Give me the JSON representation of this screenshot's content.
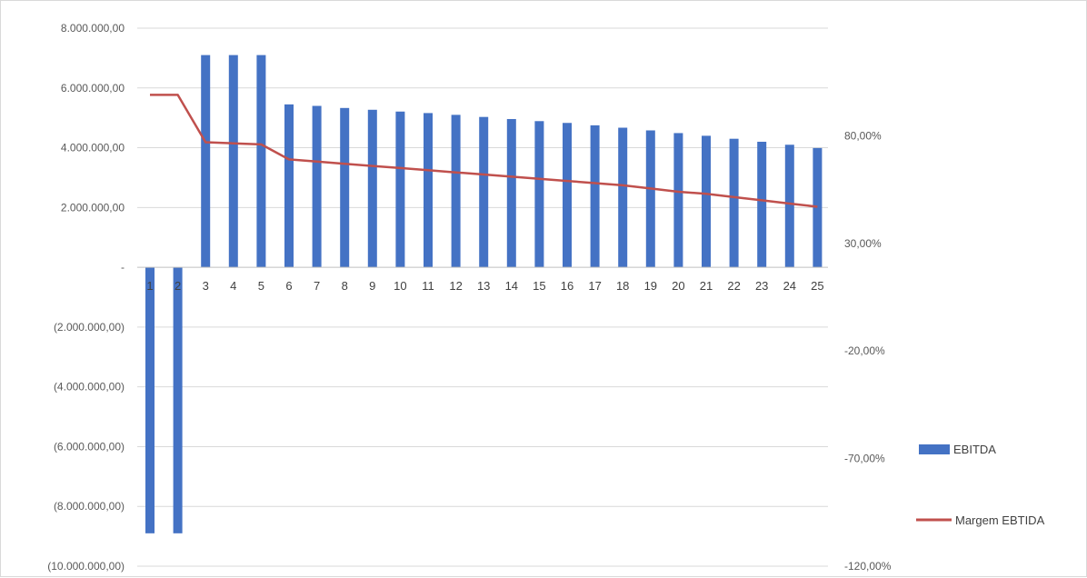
{
  "chart_data": {
    "type": "bar",
    "categories": [
      "1",
      "2",
      "3",
      "4",
      "5",
      "6",
      "7",
      "8",
      "9",
      "10",
      "11",
      "12",
      "13",
      "14",
      "15",
      "16",
      "17",
      "18",
      "19",
      "20",
      "21",
      "22",
      "23",
      "24",
      "25"
    ],
    "series": [
      {
        "name": "EBITDA",
        "type": "bar",
        "axis": "left",
        "color": "#4472C4",
        "values": [
          -8900000,
          -8900000,
          7100000,
          7100000,
          7100000,
          5450000,
          5400000,
          5330000,
          5270000,
          5210000,
          5160000,
          5100000,
          5030000,
          4960000,
          4890000,
          4830000,
          4750000,
          4670000,
          4580000,
          4490000,
          4400000,
          4300000,
          4200000,
          4100000,
          3990000
        ]
      },
      {
        "name": "Margem EBTIDA",
        "type": "line",
        "axis": "right",
        "color": "#C0504D",
        "values": [
          0.99,
          0.99,
          0.77,
          0.765,
          0.76,
          0.69,
          0.68,
          0.67,
          0.66,
          0.65,
          0.64,
          0.63,
          0.62,
          0.61,
          0.6,
          0.59,
          0.58,
          0.57,
          0.555,
          0.54,
          0.53,
          0.515,
          0.5,
          0.485,
          0.47
        ]
      }
    ],
    "y_left": {
      "ylim": [
        -10000000,
        8000000
      ],
      "ticks": [
        8000000,
        6000000,
        4000000,
        2000000,
        0,
        -2000000,
        -4000000,
        -6000000,
        -8000000,
        -10000000
      ],
      "tick_labels": [
        "8.000.000,00",
        "6.000.000,00",
        "4.000.000,00",
        "2.000.000,00",
        "-",
        "(2.000.000,00)",
        "(4.000.000,00)",
        "(6.000.000,00)",
        "(8.000.000,00)",
        "(10.000.000,00)"
      ]
    },
    "y_right": {
      "ylim": [
        -1.2,
        1.3
      ],
      "ticks": [
        0.8,
        0.3,
        -0.2,
        -0.7,
        -1.2
      ],
      "tick_labels": [
        "80,00%",
        "30,00%",
        "-20,00%",
        "-70,00%",
        "-120,00%"
      ]
    },
    "grid": true,
    "legend": "right",
    "title": "",
    "xlabel": "",
    "ylabel": ""
  }
}
